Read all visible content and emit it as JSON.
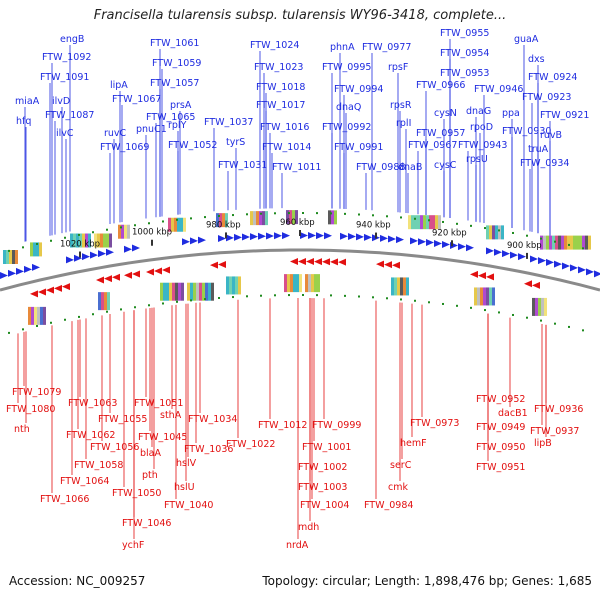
{
  "title": "Francisella tularensis subsp. tularensis WY96-3418, complete...",
  "footer": {
    "accession": "Accession: NC_009257",
    "summary": "Topology: circular; Length: 1,898,476 bp; Genes: 1,685"
  },
  "colors": {
    "forward": "#1f2ce0",
    "reverse": "#e21010",
    "backbone": "#8a8a8a",
    "tick": "#1e8a1e"
  },
  "ticks": [
    "1020 kbp",
    "1000 kbp",
    "980 kbp",
    "960 kbp",
    "940 kbp",
    "920 kbp",
    "900 kbp"
  ],
  "forward_labels": [
    "engB",
    "FTW_1092",
    "FTW_1091",
    "miaA",
    "ilvD",
    "FTW_1087",
    "hfq",
    "ilvC",
    "lipA",
    "FTW_1067",
    "ruvC",
    "FTW_1069",
    "FTW_1061",
    "FTW_1059",
    "FTW_1057",
    "FTW_1065",
    "pnuC1",
    "prsA",
    "rplY",
    "FTW_1052",
    "FTW_1037",
    "tyrS",
    "FTW_1031",
    "FTW_1024",
    "FTW_1023",
    "FTW_1018",
    "FTW_1017",
    "FTW_1016",
    "FTW_1014",
    "FTW_1011",
    "phnA",
    "FTW_0995",
    "FTW_0994",
    "dnaQ",
    "FTW_0992",
    "FTW_0991",
    "FTW_0988",
    "FTW_0977",
    "rpsF",
    "rpsR",
    "rplI",
    "FTW_0967",
    "dnaB",
    "FTW_0955",
    "FTW_0954",
    "FTW_0953",
    "FTW_0966",
    "cysN",
    "FTW_0957",
    "cysC",
    "dnaG",
    "FTW_0946",
    "rpoD",
    "FTW_0943",
    "rpsU",
    "guaA",
    "dxs",
    "FTW_0924",
    "FTW_0923",
    "ppa",
    "FTW_0921",
    "FTW_0930",
    "ruvB",
    "truA",
    "FTW_0934"
  ],
  "reverse_labels": [
    "FTW_1079",
    "FTW_1080",
    "nth",
    "FTW_1063",
    "FTW_1062",
    "FTW_1058",
    "FTW_1064",
    "FTW_1066",
    "FTW_1055",
    "FTW_1056",
    "FTW_1051",
    "sthA",
    "FTW_1045",
    "blaA",
    "pth",
    "FTW_1050",
    "FTW_1046",
    "ychF",
    "FTW_1040",
    "hslV",
    "hslU",
    "FTW_1036",
    "FTW_1034",
    "FTW_1022",
    "FTW_1012",
    "FTW_1001",
    "FTW_1002",
    "FTW_1003",
    "FTW_1004",
    "mdh",
    "nrdA",
    "FTW_0999",
    "serC",
    "cmk",
    "FTW_0984",
    "hemF",
    "FTW_0973",
    "FTW_0952",
    "FTW_0949",
    "FTW_0950",
    "FTW_0951",
    "dacB1",
    "FTW_0936",
    "FTW_0937",
    "lipB"
  ]
}
